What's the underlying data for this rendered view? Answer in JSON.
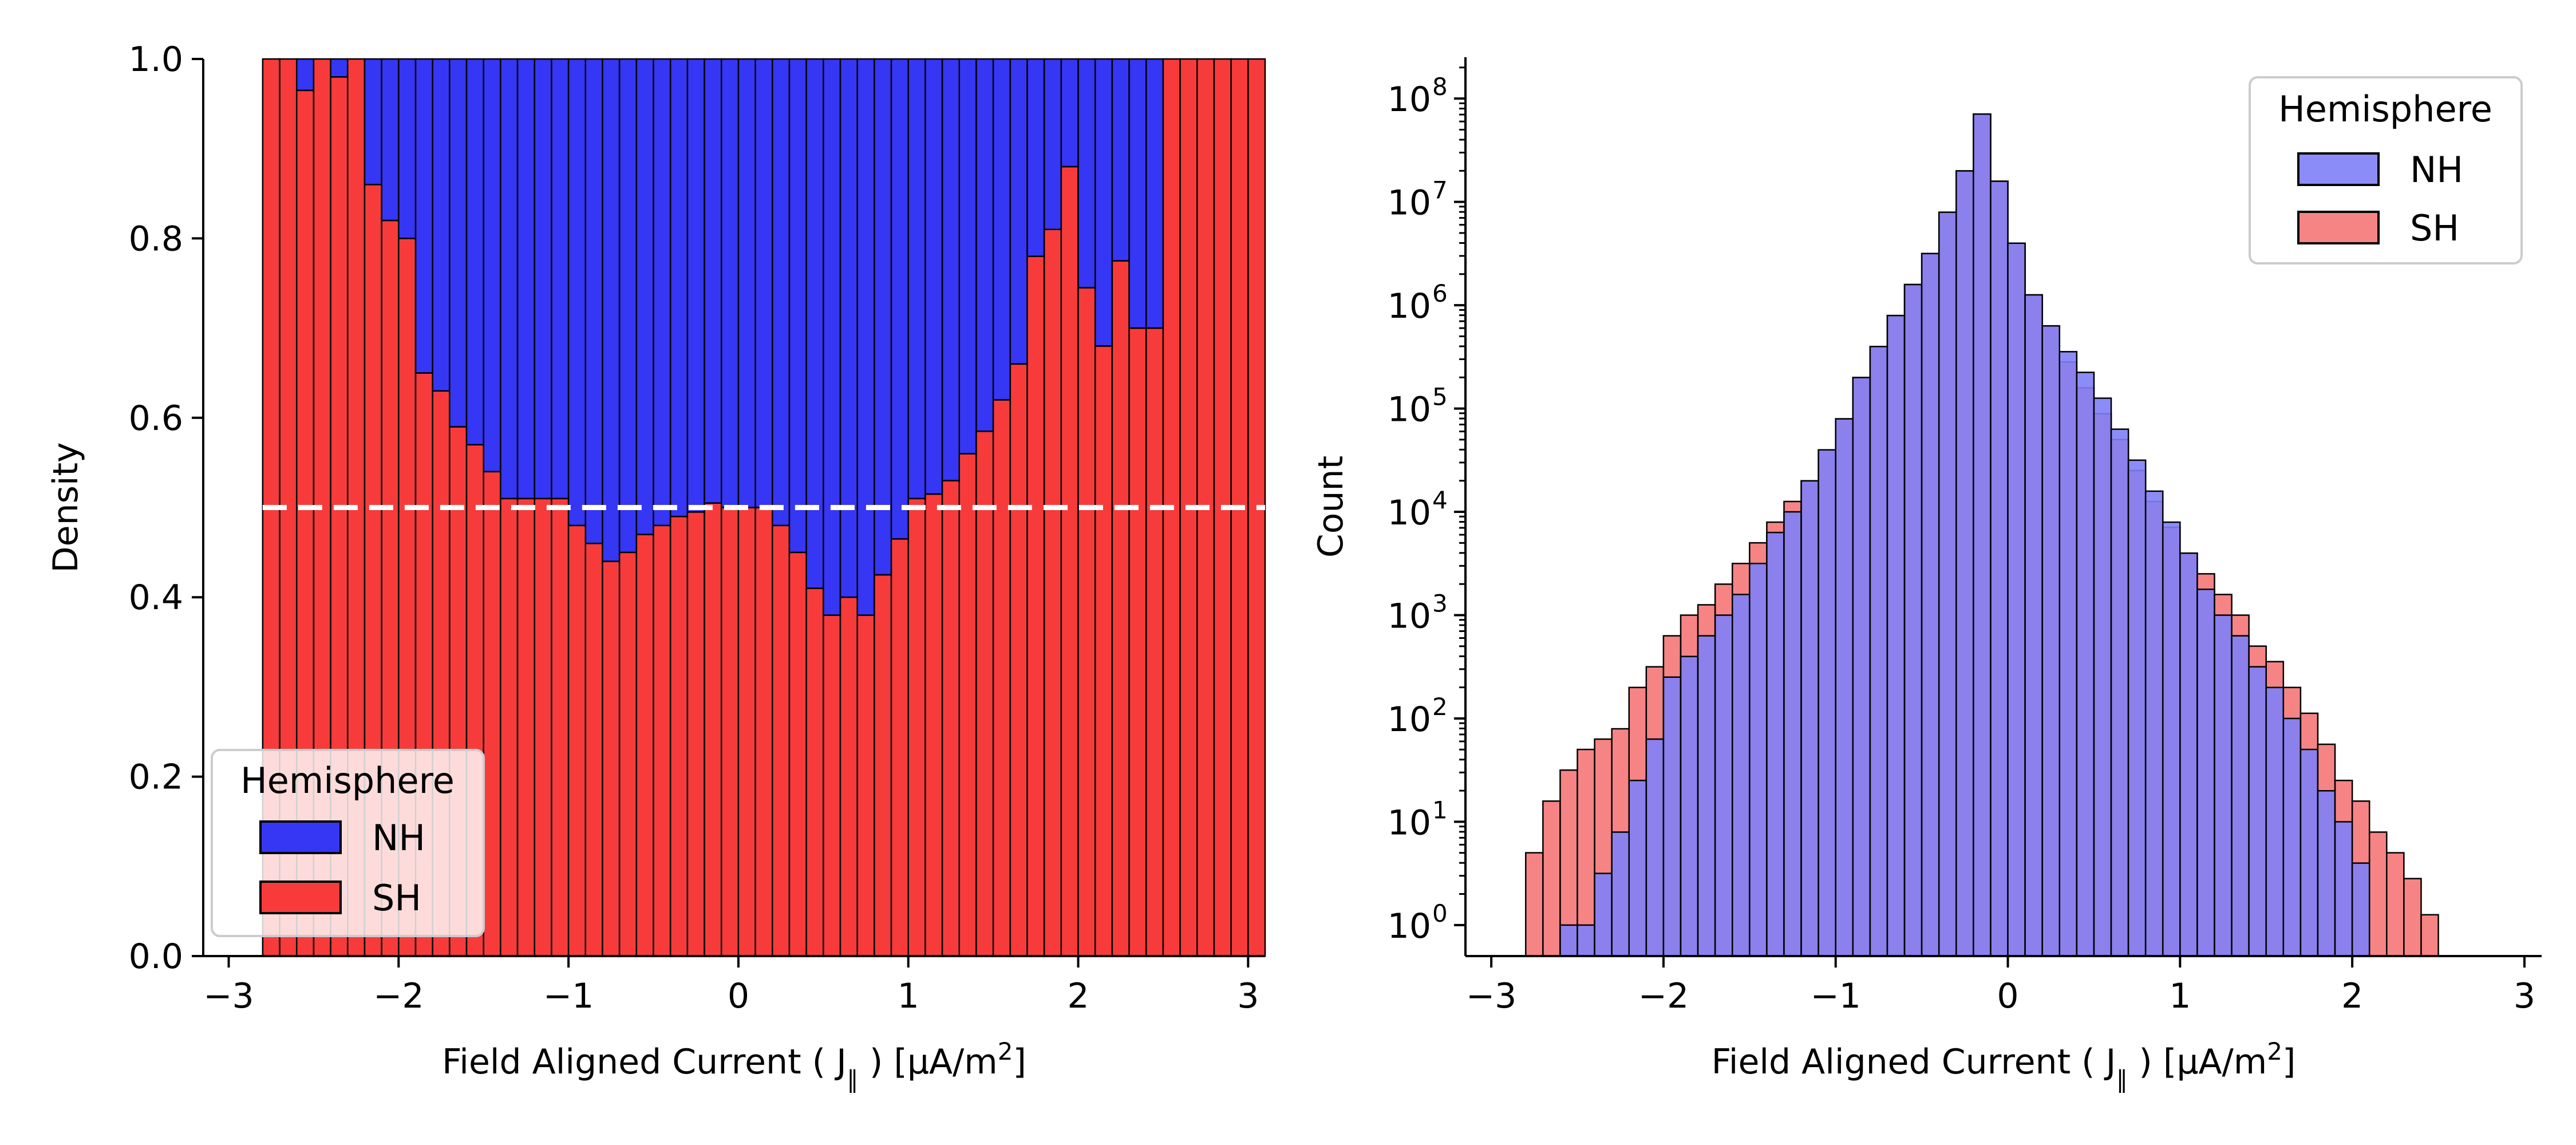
{
  "chart_data": [
    {
      "type": "bar",
      "stacked": true,
      "normalized": true,
      "xlabel": "Field Aligned Current ( J",
      "xlabel_sub": "∥",
      "xlabel_units": " ) [μA/m",
      "xlabel_sup": "2",
      "xlabel_end": "]",
      "ylabel": "Density",
      "xlim": [
        -3.15,
        3.1
      ],
      "ylim": [
        0,
        1
      ],
      "x_ticks": [
        "−3",
        "−2",
        "−1",
        "0",
        "1",
        "2",
        "3"
      ],
      "x_tick_values": [
        -3,
        -2,
        -1,
        0,
        1,
        2,
        3
      ],
      "y_ticks": [
        "0.0",
        "0.2",
        "0.4",
        "0.6",
        "0.8",
        "1.0"
      ],
      "y_tick_values": [
        0,
        0.2,
        0.4,
        0.6,
        0.8,
        1.0
      ],
      "bin_start": -2.8,
      "bin_width": 0.1,
      "reference_line": {
        "y": 0.5,
        "style": "dashed",
        "color": "#ffffff"
      },
      "legend": {
        "title": "Hemisphere",
        "placement": "lower-left",
        "entries": [
          "NH",
          "SH"
        ]
      },
      "series": [
        {
          "name": "NH",
          "color": "#3636f5",
          "values": [
            0.0,
            0.0,
            0.035,
            0.0,
            0.02,
            0.0,
            0.14,
            0.18,
            0.2,
            0.35,
            0.37,
            0.41,
            0.43,
            0.46,
            0.49,
            0.49,
            0.49,
            0.49,
            0.52,
            0.54,
            0.56,
            0.55,
            0.53,
            0.52,
            0.51,
            0.505,
            0.495,
            0.5,
            0.5,
            0.5,
            0.52,
            0.55,
            0.59,
            0.62,
            0.6,
            0.62,
            0.575,
            0.535,
            0.49,
            0.485,
            0.47,
            0.44,
            0.415,
            0.38,
            0.34,
            0.22,
            0.19,
            0.12,
            0.255,
            0.32,
            0.225,
            0.3,
            0.3,
            0.0,
            0.0,
            0.0,
            0.0,
            0.0,
            0.0
          ]
        },
        {
          "name": "SH",
          "color": "#f73b3b",
          "values": [
            1.0,
            1.0,
            0.965,
            1.0,
            0.98,
            1.0,
            0.86,
            0.82,
            0.8,
            0.65,
            0.63,
            0.59,
            0.57,
            0.54,
            0.51,
            0.51,
            0.51,
            0.51,
            0.48,
            0.46,
            0.44,
            0.45,
            0.47,
            0.48,
            0.49,
            0.495,
            0.505,
            0.5,
            0.5,
            0.5,
            0.48,
            0.45,
            0.41,
            0.38,
            0.4,
            0.38,
            0.425,
            0.465,
            0.51,
            0.515,
            0.53,
            0.56,
            0.585,
            0.62,
            0.66,
            0.78,
            0.81,
            0.88,
            0.745,
            0.68,
            0.775,
            0.7,
            0.7,
            1.0,
            1.0,
            1.0,
            1.0,
            1.0,
            1.0
          ]
        }
      ]
    },
    {
      "type": "bar",
      "overlaid": true,
      "log_y": true,
      "xlabel": "Field Aligned Current ( J",
      "xlabel_sub": "∥",
      "xlabel_units": " ) [μA/m",
      "xlabel_sup": "2",
      "xlabel_end": "]",
      "ylabel": "Count",
      "xlim": [
        -3.15,
        3.1
      ],
      "ylim_log10": [
        -0.3,
        8.4
      ],
      "x_ticks": [
        "−3",
        "−2",
        "−1",
        "0",
        "1",
        "2",
        "3"
      ],
      "x_tick_values": [
        -3,
        -2,
        -1,
        0,
        1,
        2,
        3
      ],
      "y_tick_base": "10",
      "y_tick_exponents": [
        "0",
        "1",
        "2",
        "3",
        "4",
        "5",
        "6",
        "7",
        "8"
      ],
      "bin_start": -2.8,
      "bin_width": 0.1,
      "legend": {
        "title": "Hemisphere",
        "placement": "top-right",
        "entries": [
          "NH",
          "SH"
        ]
      },
      "series": [
        {
          "name": "NH",
          "color": "#8080f7",
          "alpha": 0.9,
          "values_log10": [
            null,
            null,
            0,
            0,
            0.5,
            0.9,
            1.4,
            1.8,
            2.4,
            2.6,
            2.8,
            3.0,
            3.2,
            3.5,
            3.8,
            4.0,
            4.3,
            4.6,
            4.9,
            5.3,
            5.6,
            5.9,
            6.2,
            6.5,
            6.9,
            7.3,
            7.85,
            7.2,
            6.6,
            6.1,
            5.8,
            5.55,
            5.35,
            5.1,
            4.8,
            4.5,
            4.2,
            3.9,
            3.6,
            3.25,
            3.0,
            2.8,
            2.5,
            2.3,
            2.0,
            1.7,
            1.3,
            1.0,
            0.6,
            null,
            null,
            null,
            null,
            null,
            null,
            null,
            null,
            null,
            null
          ]
        },
        {
          "name": "SH",
          "color": "#f56e6e",
          "alpha": 0.85,
          "values_log10": [
            0.7,
            1.2,
            1.5,
            1.7,
            1.8,
            1.9,
            2.3,
            2.5,
            2.8,
            3.0,
            3.1,
            3.3,
            3.5,
            3.7,
            3.9,
            4.1,
            4.3,
            4.6,
            4.9,
            5.3,
            5.6,
            5.9,
            6.2,
            6.5,
            6.9,
            7.3,
            7.85,
            7.2,
            6.6,
            6.1,
            5.8,
            5.45,
            5.2,
            4.95,
            4.7,
            4.4,
            4.1,
            3.85,
            3.6,
            3.4,
            3.2,
            3.0,
            2.7,
            2.55,
            2.3,
            2.05,
            1.75,
            1.4,
            1.2,
            0.9,
            0.7,
            0.45,
            0.1,
            null,
            null,
            null,
            null,
            null,
            null
          ]
        }
      ]
    }
  ]
}
